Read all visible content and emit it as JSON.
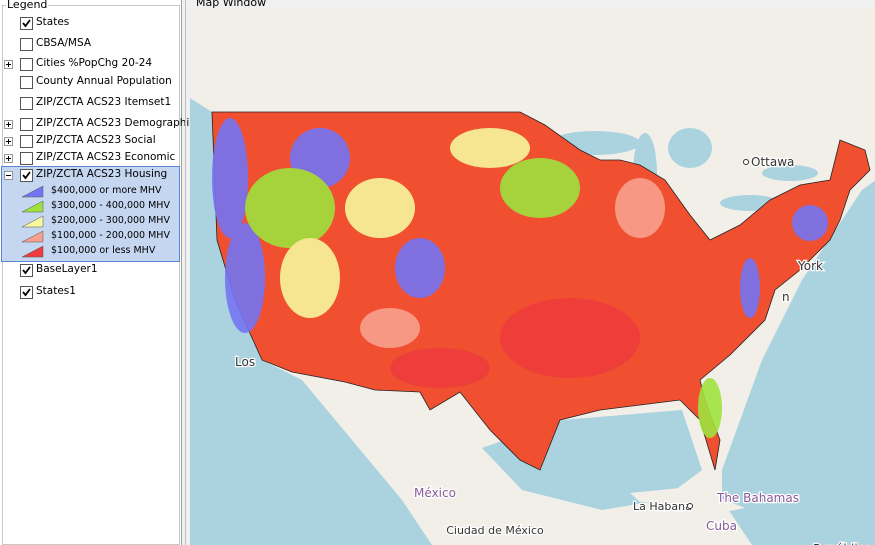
{
  "legend": {
    "title": "Legend",
    "layers": [
      {
        "label": "States",
        "checked": true
      },
      {
        "label": "CBSA/MSA",
        "checked": false
      },
      {
        "label": "Cities %PopChg 20-24",
        "checked": false,
        "expander": "plus"
      },
      {
        "label": "County Annual Population",
        "checked": false
      },
      {
        "label": "ZIP/ZCTA ACS23 Itemset1",
        "checked": false
      },
      {
        "label": "ZIP/ZCTA ACS23 Demographi",
        "checked": false,
        "expander": "plus"
      },
      {
        "label": "ZIP/ZCTA ACS23 Social",
        "checked": false,
        "expander": "plus"
      },
      {
        "label": "ZIP/ZCTA ACS23 Economic",
        "checked": false,
        "expander": "plus"
      },
      {
        "label": "ZIP/ZCTA ACS23 Housing",
        "checked": true,
        "expander": "minus",
        "selected": true,
        "classes": [
          {
            "label": "$400,000 or more MHV",
            "color": "#7474f2"
          },
          {
            "label": "$300,000 - 400,000 MHV",
            "color": "#9fe23e"
          },
          {
            "label": "$200,000 - 300,000 MHV",
            "color": "#f7f79c"
          },
          {
            "label": "$100,000 - 200,000 MHV",
            "color": "#f8a08e"
          },
          {
            "label": "$100,000 or less MHV",
            "color": "#ee3c3c"
          }
        ]
      },
      {
        "label": "BaseLayer1",
        "checked": true
      },
      {
        "label": "States1",
        "checked": true
      }
    ]
  },
  "map_window": {
    "title": "Map Window",
    "labels": [
      "Ottawa",
      "York",
      "n",
      "Los",
      "México",
      "La Habana",
      "The Bahamas",
      "Cuba",
      "Ciudad de México",
      "República"
    ]
  }
}
